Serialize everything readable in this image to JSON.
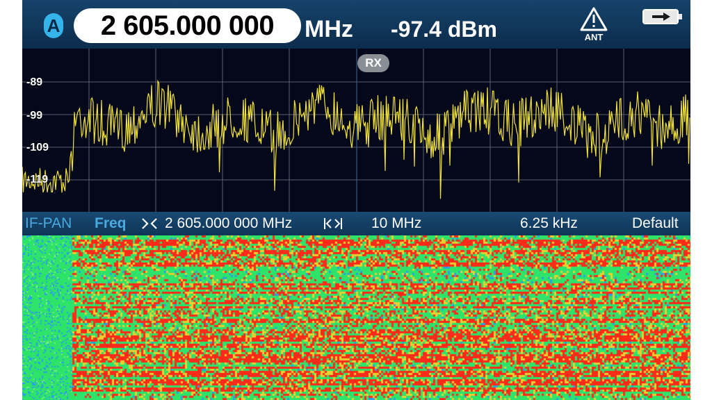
{
  "header": {
    "channel_badge": "A",
    "frequency": "2 605.000 000",
    "frequency_unit": "MHz",
    "level": "-97.4 dBm",
    "antenna_warning_label": "ANT",
    "battery_icon": "battery-charging-icon",
    "warning_icon": "warning-triangle-icon"
  },
  "spectrum": {
    "y_labels": [
      "-89",
      "-99",
      "-109",
      "-119"
    ],
    "marker_label": "RX",
    "trace_color": "#f2e23a",
    "grid_color": "#5a6070"
  },
  "infobar": {
    "mode": "IF-PAN",
    "tab": "Freq",
    "center_icon": "center-frequency-icon",
    "center_frequency": "2 605.000 000 MHz",
    "span_icon": "span-icon",
    "span": "10 MHz",
    "resolution": "6.25 kHz",
    "preset": "Default"
  },
  "waterfall": {
    "colors": [
      "#2de36a",
      "#ff2a1a",
      "#e8d030",
      "#2aa0e8"
    ]
  }
}
